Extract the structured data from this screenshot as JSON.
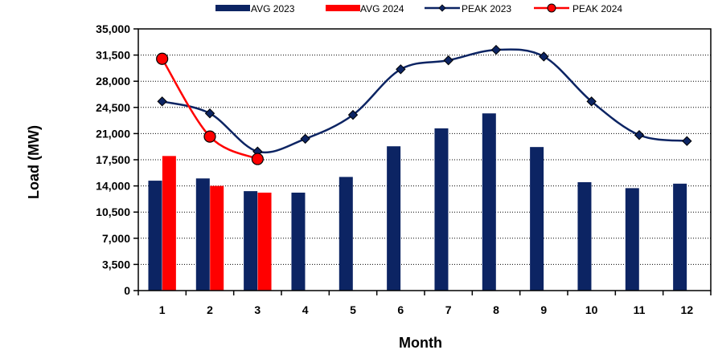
{
  "chart_data": {
    "type": "bar",
    "categories": [
      "1",
      "2",
      "3",
      "4",
      "5",
      "6",
      "7",
      "8",
      "9",
      "10",
      "11",
      "12"
    ],
    "xlabel": "Month",
    "ylabel": "Load (MW)",
    "ylim": [
      0,
      35000
    ],
    "yticks": [
      "0",
      "3,500",
      "7,000",
      "10,500",
      "14,000",
      "17,500",
      "21,000",
      "24,500",
      "28,000",
      "31,500",
      "35,000"
    ],
    "ytick_values": [
      0,
      3500,
      7000,
      10500,
      14000,
      17500,
      21000,
      24500,
      28000,
      31500,
      35000
    ],
    "grid": "horizontal dotted",
    "legend_position": "top",
    "series": [
      {
        "name": "AVG 2023",
        "kind": "bar",
        "color": "#0c2463",
        "values": [
          14700,
          15000,
          13300,
          13100,
          15200,
          19300,
          21700,
          23700,
          19200,
          14500,
          13700,
          14300
        ]
      },
      {
        "name": "AVG 2024",
        "kind": "bar",
        "color": "#ff0000",
        "values": [
          18000,
          14000,
          13100,
          null,
          null,
          null,
          null,
          null,
          null,
          null,
          null,
          null
        ]
      },
      {
        "name": "PEAK 2023",
        "kind": "line",
        "marker": "diamond",
        "color": "#0c2463",
        "values": [
          25300,
          23700,
          18600,
          20300,
          23500,
          29600,
          30800,
          32200,
          31300,
          25300,
          20800,
          20000
        ]
      },
      {
        "name": "PEAK 2024",
        "kind": "line",
        "marker": "circle",
        "color": "#ff0000",
        "values": [
          31000,
          20600,
          17600,
          null,
          null,
          null,
          null,
          null,
          null,
          null,
          null,
          null
        ]
      }
    ]
  }
}
